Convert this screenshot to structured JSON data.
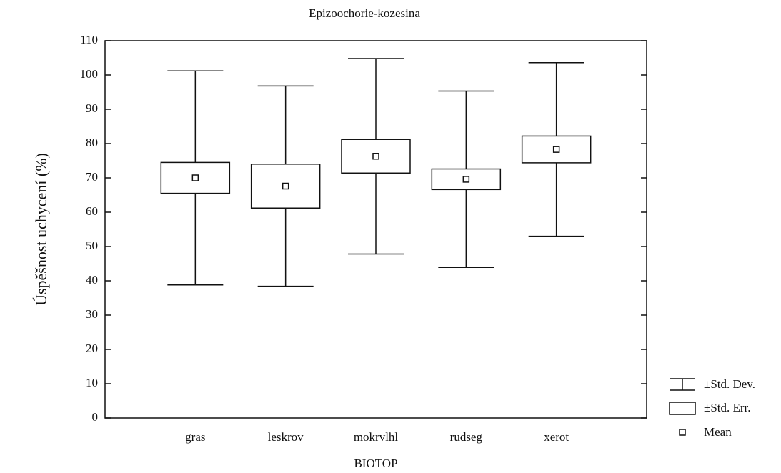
{
  "chart_data": {
    "type": "box",
    "title": "Epizoochorie-kozesina",
    "x_label": "BIOTOP",
    "y_label": "Úspěšnost uchycení (%)",
    "categories": [
      "gras",
      "leskrov",
      "mokrvlhl",
      "rudseg",
      "xerot"
    ],
    "mean": [
      70.0,
      67.6,
      76.3,
      69.6,
      78.3
    ],
    "std_err": [
      4.5,
      6.4,
      4.9,
      3.0,
      3.9
    ],
    "std_dev": [
      31.2,
      29.2,
      28.5,
      25.7,
      25.3
    ],
    "ylim": [
      0,
      110
    ],
    "yticks": [
      0,
      10,
      20,
      30,
      40,
      50,
      60,
      70,
      80,
      90,
      100,
      110
    ],
    "legend": {
      "position": "right",
      "items": [
        "±Std. Dev.",
        "±Std. Err.",
        "Mean"
      ]
    },
    "color": "#111111"
  }
}
